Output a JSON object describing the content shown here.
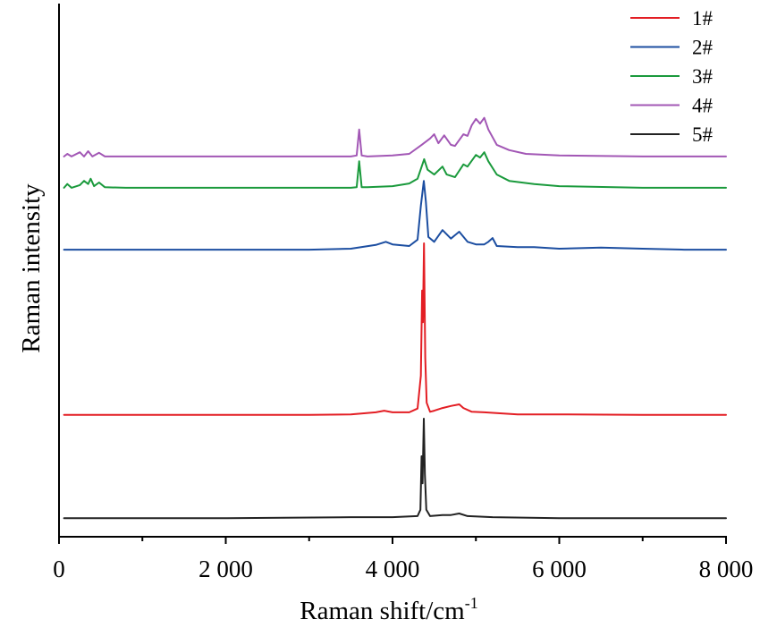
{
  "chart_data": {
    "type": "line",
    "xlabel": "Raman shift/cm",
    "xlabel_superscript": "-1",
    "ylabel": "Raman intensity",
    "xlim": [
      0,
      8000
    ],
    "ylim": [
      0,
      100
    ],
    "x_ticks": [
      0,
      2000,
      4000,
      6000,
      8000
    ],
    "x_tick_labels": [
      "0",
      "2 000",
      "4 000",
      "6 000",
      "8 000"
    ],
    "x_minor_ticks": [
      1000,
      3000,
      5000,
      7000
    ],
    "y_ticks": [],
    "grid": false,
    "legend": "top-right",
    "series": [
      {
        "name": "1#",
        "color": "#e31e24",
        "points": [
          [
            60,
            23.0
          ],
          [
            1000,
            23.0
          ],
          [
            2000,
            23.0
          ],
          [
            3000,
            23.0
          ],
          [
            3500,
            23.1
          ],
          [
            3800,
            23.5
          ],
          [
            3900,
            23.8
          ],
          [
            4000,
            23.5
          ],
          [
            4200,
            23.5
          ],
          [
            4300,
            24.2
          ],
          [
            4340,
            30.4
          ],
          [
            4355,
            46.5
          ],
          [
            4365,
            40.5
          ],
          [
            4378,
            55.4
          ],
          [
            4392,
            33.8
          ],
          [
            4410,
            25.3
          ],
          [
            4450,
            23.6
          ],
          [
            4500,
            23.8
          ],
          [
            4600,
            24.3
          ],
          [
            4700,
            24.7
          ],
          [
            4800,
            25.0
          ],
          [
            4850,
            24.3
          ],
          [
            4950,
            23.6
          ],
          [
            5100,
            23.5
          ],
          [
            5500,
            23.1
          ],
          [
            6000,
            23.1
          ],
          [
            7000,
            23.0
          ],
          [
            8000,
            23.0
          ]
        ]
      },
      {
        "name": "2#",
        "color": "#1c4ea1",
        "points": [
          [
            60,
            54.2
          ],
          [
            500,
            54.2
          ],
          [
            1000,
            54.2
          ],
          [
            2000,
            54.2
          ],
          [
            3000,
            54.2
          ],
          [
            3500,
            54.4
          ],
          [
            3800,
            55.1
          ],
          [
            3920,
            55.7
          ],
          [
            4000,
            55.2
          ],
          [
            4200,
            54.9
          ],
          [
            4300,
            56.1
          ],
          [
            4340,
            62.5
          ],
          [
            4375,
            67.2
          ],
          [
            4400,
            63.3
          ],
          [
            4430,
            56.6
          ],
          [
            4500,
            55.7
          ],
          [
            4600,
            57.9
          ],
          [
            4700,
            56.3
          ],
          [
            4800,
            57.6
          ],
          [
            4900,
            55.7
          ],
          [
            5000,
            55.2
          ],
          [
            5100,
            55.2
          ],
          [
            5150,
            55.7
          ],
          [
            5200,
            56.4
          ],
          [
            5250,
            54.9
          ],
          [
            5500,
            54.7
          ],
          [
            5700,
            54.7
          ],
          [
            6000,
            54.4
          ],
          [
            6500,
            54.6
          ],
          [
            7000,
            54.4
          ],
          [
            7500,
            54.2
          ],
          [
            8000,
            54.2
          ]
        ]
      },
      {
        "name": "3#",
        "color": "#1a9a3c",
        "points": [
          [
            60,
            65.9
          ],
          [
            100,
            66.6
          ],
          [
            150,
            65.9
          ],
          [
            250,
            66.4
          ],
          [
            300,
            67.2
          ],
          [
            350,
            66.6
          ],
          [
            380,
            67.6
          ],
          [
            420,
            66.2
          ],
          [
            480,
            66.9
          ],
          [
            550,
            66.0
          ],
          [
            800,
            65.9
          ],
          [
            2000,
            65.9
          ],
          [
            3500,
            65.9
          ],
          [
            3570,
            66.0
          ],
          [
            3600,
            70.9
          ],
          [
            3630,
            66.0
          ],
          [
            3700,
            66.0
          ],
          [
            4000,
            66.2
          ],
          [
            4200,
            66.7
          ],
          [
            4300,
            67.6
          ],
          [
            4380,
            71.3
          ],
          [
            4420,
            69.3
          ],
          [
            4500,
            68.4
          ],
          [
            4600,
            69.9
          ],
          [
            4650,
            68.4
          ],
          [
            4750,
            67.9
          ],
          [
            4850,
            70.3
          ],
          [
            4900,
            69.9
          ],
          [
            5000,
            72.1
          ],
          [
            5050,
            71.6
          ],
          [
            5100,
            72.6
          ],
          [
            5150,
            70.9
          ],
          [
            5250,
            68.4
          ],
          [
            5400,
            67.2
          ],
          [
            5700,
            66.6
          ],
          [
            6000,
            66.2
          ],
          [
            7000,
            65.9
          ],
          [
            8000,
            65.9
          ]
        ]
      },
      {
        "name": "4#",
        "color": "#a257b5",
        "points": [
          [
            60,
            71.8
          ],
          [
            100,
            72.3
          ],
          [
            150,
            71.8
          ],
          [
            250,
            72.6
          ],
          [
            300,
            71.8
          ],
          [
            350,
            72.8
          ],
          [
            400,
            71.8
          ],
          [
            480,
            72.5
          ],
          [
            550,
            71.8
          ],
          [
            800,
            71.8
          ],
          [
            1500,
            71.8
          ],
          [
            2500,
            71.8
          ],
          [
            3500,
            71.8
          ],
          [
            3570,
            72.0
          ],
          [
            3600,
            76.9
          ],
          [
            3630,
            72.0
          ],
          [
            3700,
            71.8
          ],
          [
            4000,
            72.0
          ],
          [
            4200,
            72.3
          ],
          [
            4350,
            74.0
          ],
          [
            4450,
            75.2
          ],
          [
            4500,
            76.0
          ],
          [
            4550,
            74.3
          ],
          [
            4620,
            75.8
          ],
          [
            4700,
            74.0
          ],
          [
            4750,
            73.8
          ],
          [
            4850,
            76.0
          ],
          [
            4900,
            75.7
          ],
          [
            4950,
            77.7
          ],
          [
            5000,
            78.9
          ],
          [
            5050,
            78.0
          ],
          [
            5100,
            79.1
          ],
          [
            5150,
            76.9
          ],
          [
            5250,
            74.0
          ],
          [
            5400,
            73.0
          ],
          [
            5600,
            72.3
          ],
          [
            6000,
            72.0
          ],
          [
            7000,
            71.8
          ],
          [
            8000,
            71.8
          ]
        ]
      },
      {
        "name": "5#",
        "color": "#222222",
        "points": [
          [
            60,
            3.5
          ],
          [
            1000,
            3.5
          ],
          [
            2000,
            3.5
          ],
          [
            3500,
            3.7
          ],
          [
            4000,
            3.7
          ],
          [
            4300,
            3.9
          ],
          [
            4335,
            5.1
          ],
          [
            4348,
            15.2
          ],
          [
            4360,
            10.1
          ],
          [
            4375,
            22.3
          ],
          [
            4388,
            11.8
          ],
          [
            4405,
            5.1
          ],
          [
            4450,
            3.9
          ],
          [
            4600,
            4.1
          ],
          [
            4700,
            4.1
          ],
          [
            4800,
            4.4
          ],
          [
            4900,
            3.9
          ],
          [
            5200,
            3.7
          ],
          [
            6000,
            3.5
          ],
          [
            8000,
            3.5
          ]
        ]
      }
    ]
  }
}
